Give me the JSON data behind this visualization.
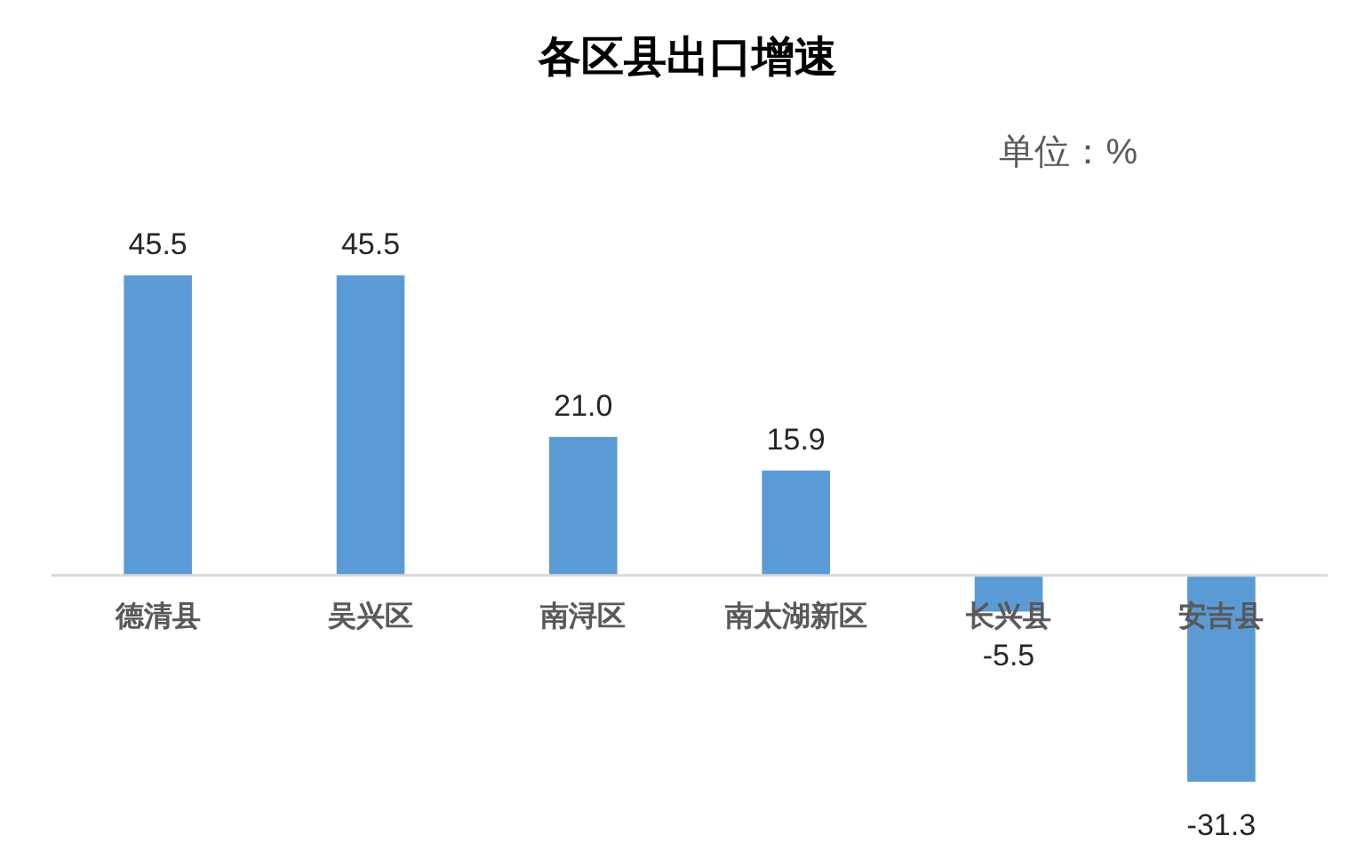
{
  "chart_data": {
    "type": "bar",
    "title": "各区县出口增速",
    "annotations": [
      "单位：%"
    ],
    "categories": [
      "德清县",
      "吴兴区",
      "南浔区",
      "南太湖新区",
      "长兴县",
      "安吉县"
    ],
    "values": [
      45.5,
      45.5,
      21.0,
      15.9,
      -5.5,
      -31.3
    ],
    "value_labels": [
      "45.5",
      "45.5",
      "21.0",
      "15.9",
      "-5.5",
      "-31.3"
    ],
    "color": "#5b9bd5"
  }
}
